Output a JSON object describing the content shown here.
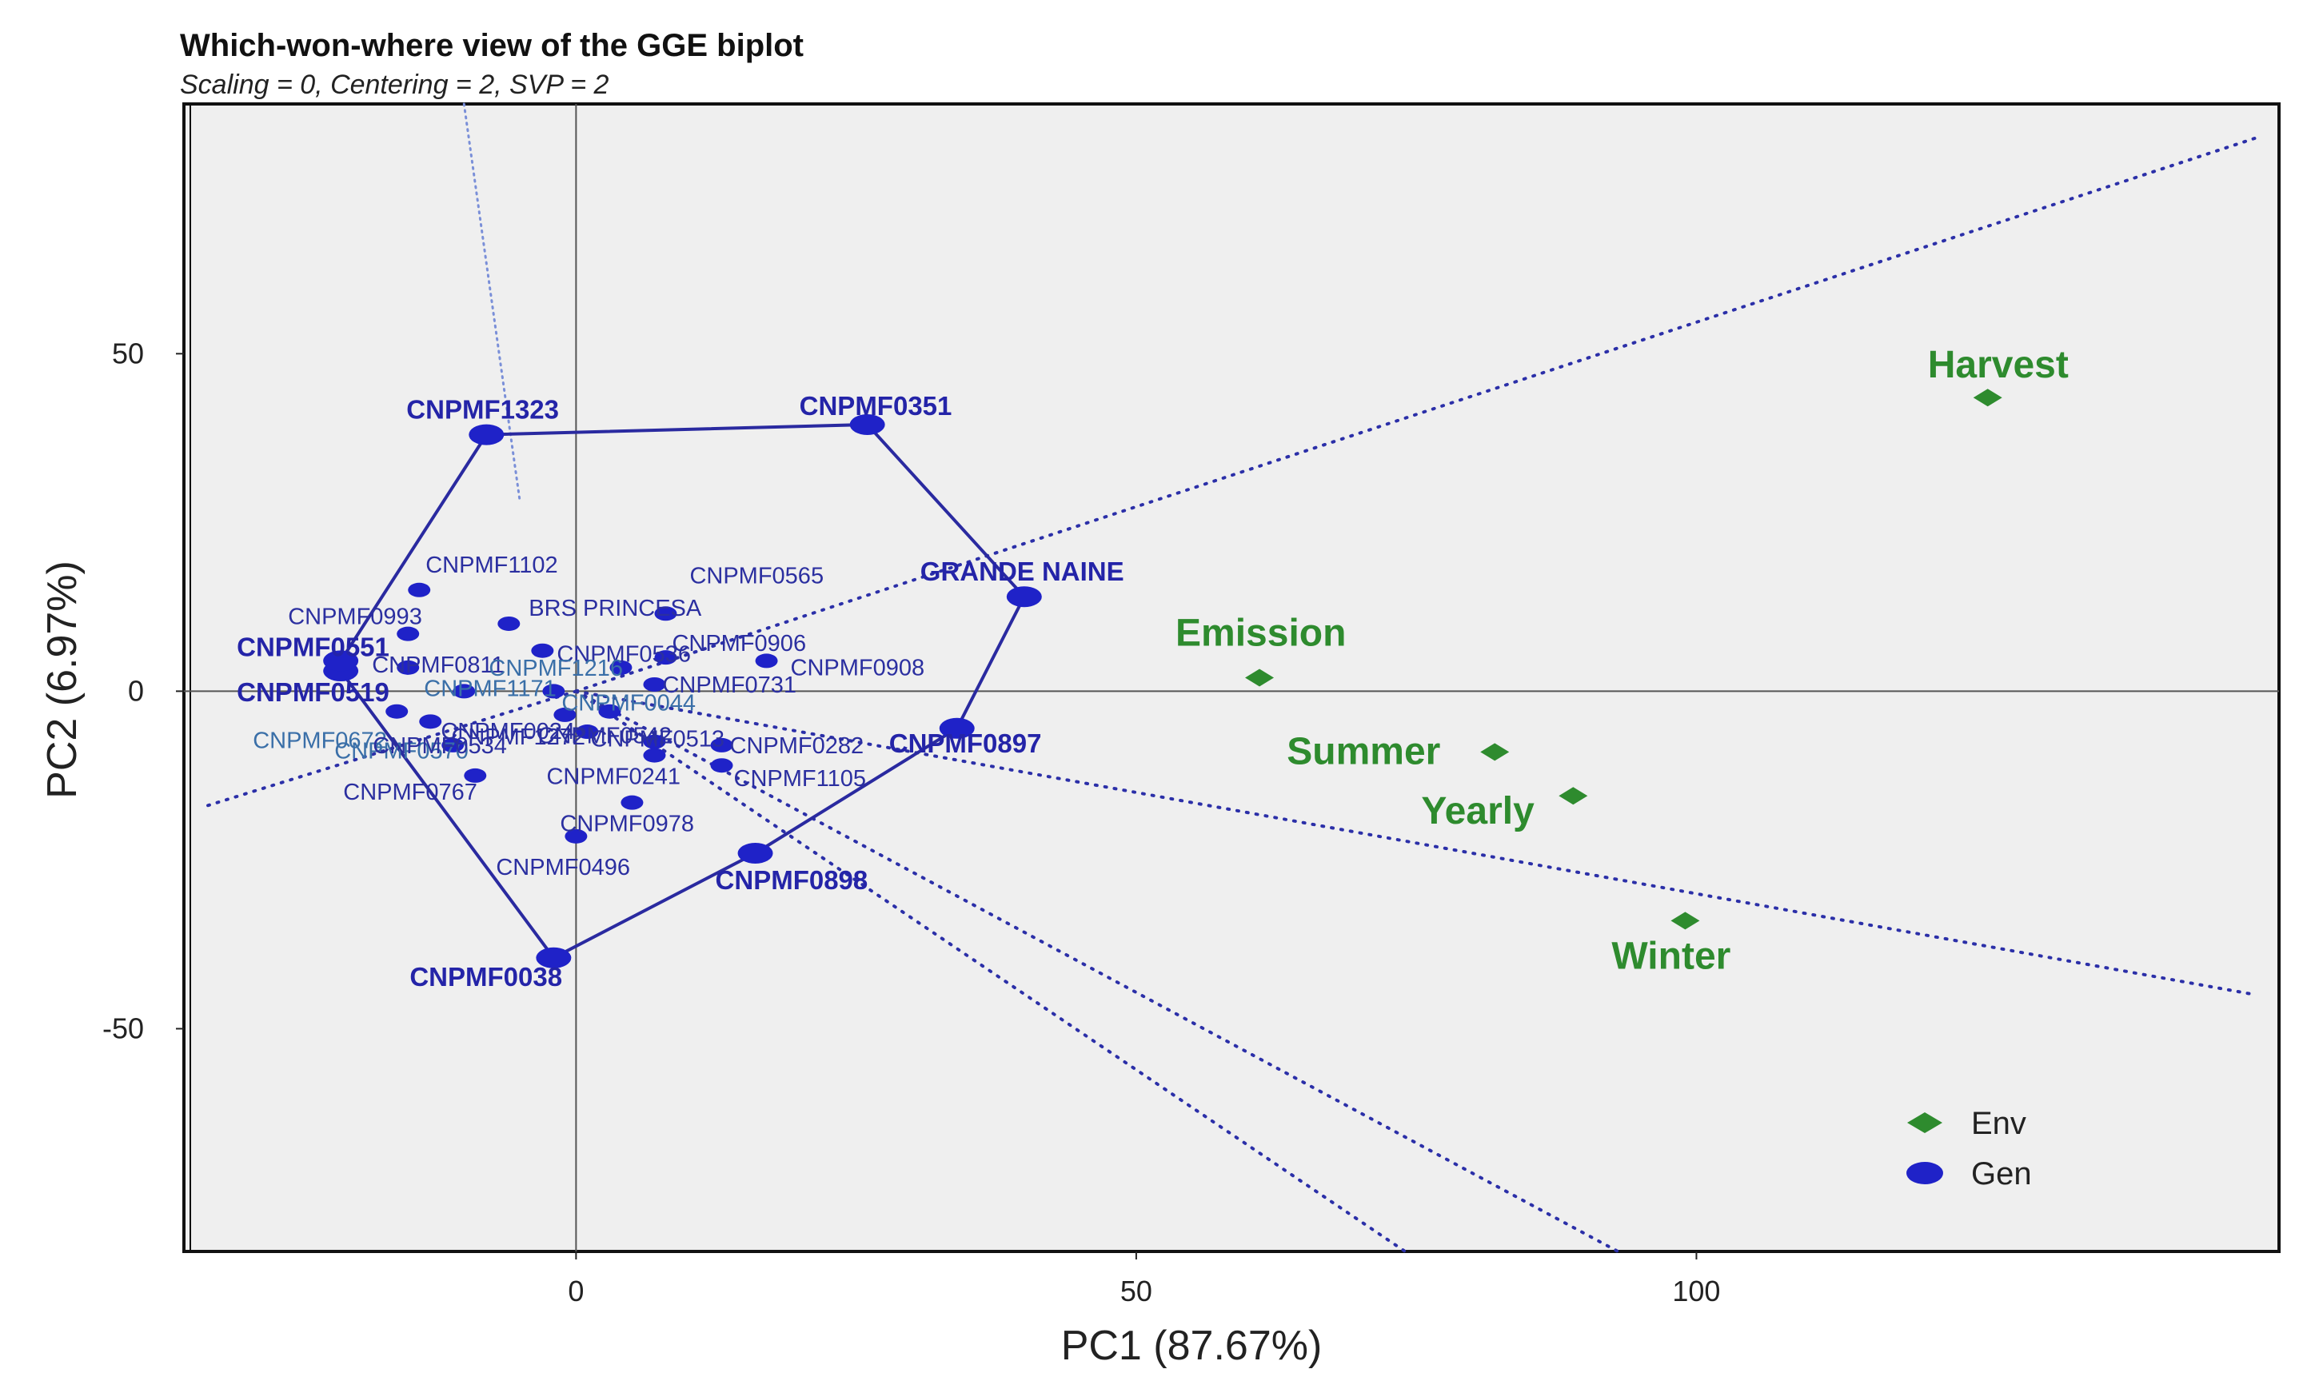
{
  "chart_data": {
    "type": "scatter",
    "title": "Which-won-where view of the GGE biplot",
    "subtitle": "Scaling = 0, Centering = 2, SVP = 2",
    "xlabel": "PC1 (87.67%)",
    "ylabel": "PC2 (6.97%)",
    "xlim": [
      -35,
      152
    ],
    "ylim": [
      -83,
      87
    ],
    "xticks": [
      0,
      50,
      100
    ],
    "yticks": [
      50,
      0,
      -50
    ],
    "grid": false,
    "legend": {
      "position": "bottom-right",
      "entries": [
        {
          "name": "Env",
          "marker": "diamond",
          "color": "#2e8b2e"
        },
        {
          "name": "Gen",
          "marker": "ellipse",
          "color": "#1f22c8"
        }
      ]
    },
    "colors": {
      "env": "#2e8b2e",
      "gen": "#1f22c8",
      "hull": "#2a2aa0",
      "background": "#efefef"
    },
    "environments": [
      {
        "name": "Harvest",
        "x": 126,
        "y": 43.5
      },
      {
        "name": "Emission",
        "x": 61,
        "y": 2
      },
      {
        "name": "Summer",
        "x": 82,
        "y": -9
      },
      {
        "name": "Yearly",
        "x": 89,
        "y": -15.5
      },
      {
        "name": "Winter",
        "x": 99,
        "y": -34
      }
    ],
    "genotypes": [
      {
        "name": "CNPMF1323",
        "x": -8,
        "y": 38,
        "vertex": true
      },
      {
        "name": "CNPMF0351",
        "x": 26,
        "y": 39.5,
        "vertex": true
      },
      {
        "name": "GRANDE NAINE",
        "x": 40,
        "y": 14,
        "vertex": true
      },
      {
        "name": "CNPMF0897",
        "x": 34,
        "y": -5.5,
        "vertex": true
      },
      {
        "name": "CNPMF0898",
        "x": 16,
        "y": -24,
        "vertex": true
      },
      {
        "name": "CNPMF0038",
        "x": -2,
        "y": -39.5,
        "vertex": true
      },
      {
        "name": "CNPMF0519",
        "x": -21,
        "y": 3,
        "vertex": true
      },
      {
        "name": "CNPMF0551",
        "x": -21,
        "y": 4.5,
        "vertex": true
      },
      {
        "name": "CNPMF1102",
        "x": -14,
        "y": 15,
        "vertex": false
      },
      {
        "name": "BRS PRINCESA",
        "x": -6,
        "y": 10,
        "vertex": false
      },
      {
        "name": "CNPMF0993",
        "x": -15,
        "y": 8.5,
        "vertex": false
      },
      {
        "name": "CNPMF0565",
        "x": 8,
        "y": 11.5,
        "vertex": false
      },
      {
        "name": "CNPMF0536",
        "x": -3,
        "y": 6,
        "vertex": false
      },
      {
        "name": "CNPMF0906",
        "x": 8,
        "y": 5,
        "vertex": false
      },
      {
        "name": "CNPMF0811",
        "x": -15,
        "y": 3.5,
        "vertex": false
      },
      {
        "name": "CNPMF1216",
        "x": 4,
        "y": 3.5,
        "vertex": false
      },
      {
        "name": "CNPMF0908",
        "x": 17,
        "y": 4.5,
        "vertex": false
      },
      {
        "name": "CNPMF1171",
        "x": -10,
        "y": 0,
        "vertex": false
      },
      {
        "name": "CNPMF0731",
        "x": 7,
        "y": 1,
        "vertex": false
      },
      {
        "name": "CNPMF0044",
        "x": -2,
        "y": 0,
        "vertex": false
      },
      {
        "name": "CNPMF0542",
        "x": 3,
        "y": -3,
        "vertex": false
      },
      {
        "name": "CNPMF0672",
        "x": -16,
        "y": -3,
        "vertex": false
      },
      {
        "name": "CNPMF0024",
        "x": -1,
        "y": -3.5,
        "vertex": false
      },
      {
        "name": "CNPMF0570",
        "x": -13,
        "y": -4.5,
        "vertex": false
      },
      {
        "name": "CNPMF1272",
        "x": 1,
        "y": -6,
        "vertex": false
      },
      {
        "name": "CNPMF0513",
        "x": 7,
        "y": -7.5,
        "vertex": false
      },
      {
        "name": "CNPMF0282",
        "x": 13,
        "y": -8,
        "vertex": false
      },
      {
        "name": "CNPMF0534",
        "x": -11,
        "y": -8,
        "vertex": false
      },
      {
        "name": "CNPMF1105",
        "x": 13,
        "y": -11,
        "vertex": false
      },
      {
        "name": "CNPMF0241",
        "x": 7,
        "y": -9.5,
        "vertex": false
      },
      {
        "name": "CNPMF0767",
        "x": -9,
        "y": -12.5,
        "vertex": false
      },
      {
        "name": "CNPMF0978",
        "x": 5,
        "y": -16.5,
        "vertex": false
      },
      {
        "name": "CNPMF0496",
        "x": 0,
        "y": -21.5,
        "vertex": false
      }
    ],
    "hull": [
      "CNPMF1323",
      "CNPMF0351",
      "GRANDE NAINE",
      "CNPMF0897",
      "CNPMF0898",
      "CNPMF0038",
      "CNPMF0519",
      "CNPMF0551"
    ],
    "sector_rays": [
      {
        "from": [
          0,
          0
        ],
        "to": [
          150,
          82
        ]
      },
      {
        "from": [
          0,
          0
        ],
        "to": [
          -33,
          -17
        ]
      },
      {
        "from": [
          0,
          0
        ],
        "to": [
          150,
          -45
        ]
      },
      {
        "from": [
          0,
          0
        ],
        "to": [
          74,
          -83
        ]
      },
      {
        "from": [
          0,
          0
        ],
        "to": [
          93,
          -83
        ]
      },
      {
        "from": [
          -10,
          87
        ],
        "to": [
          -5,
          28
        ]
      }
    ]
  }
}
